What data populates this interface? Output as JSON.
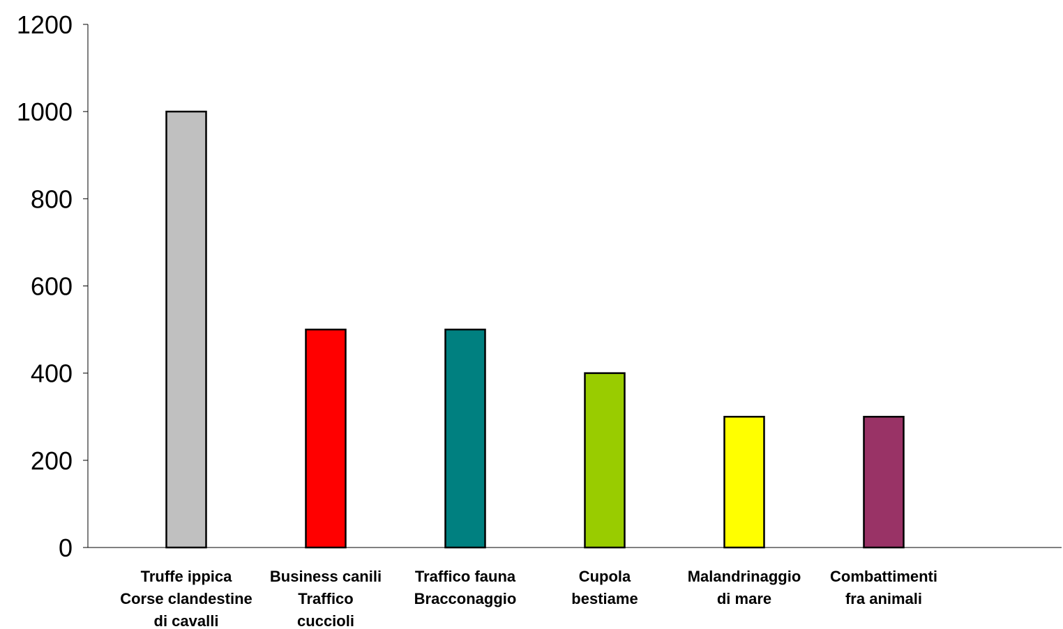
{
  "chart_data": {
    "type": "bar",
    "title": "",
    "xlabel": "",
    "ylabel": "",
    "ylim": [
      0,
      1200
    ],
    "yticks": [
      0,
      200,
      400,
      600,
      800,
      1000,
      1200
    ],
    "grid": false,
    "legend": "none",
    "categories": [
      [
        "Truffe ippica",
        "Corse clandestine",
        "di cavalli"
      ],
      [
        "Business canili",
        "Traffico",
        "cuccioli"
      ],
      [
        "Traffico fauna",
        "Bracconaggio"
      ],
      [
        "Cupola",
        "bestiame"
      ],
      [
        "Malandrinaggio",
        "di mare"
      ],
      [
        "Combattimenti",
        "fra animali"
      ]
    ],
    "values": [
      1000,
      500,
      500,
      400,
      300,
      300
    ],
    "colors": [
      "#C0C0C0",
      "#FF0000",
      "#008080",
      "#99CC00",
      "#FFFF00",
      "#993366"
    ]
  }
}
